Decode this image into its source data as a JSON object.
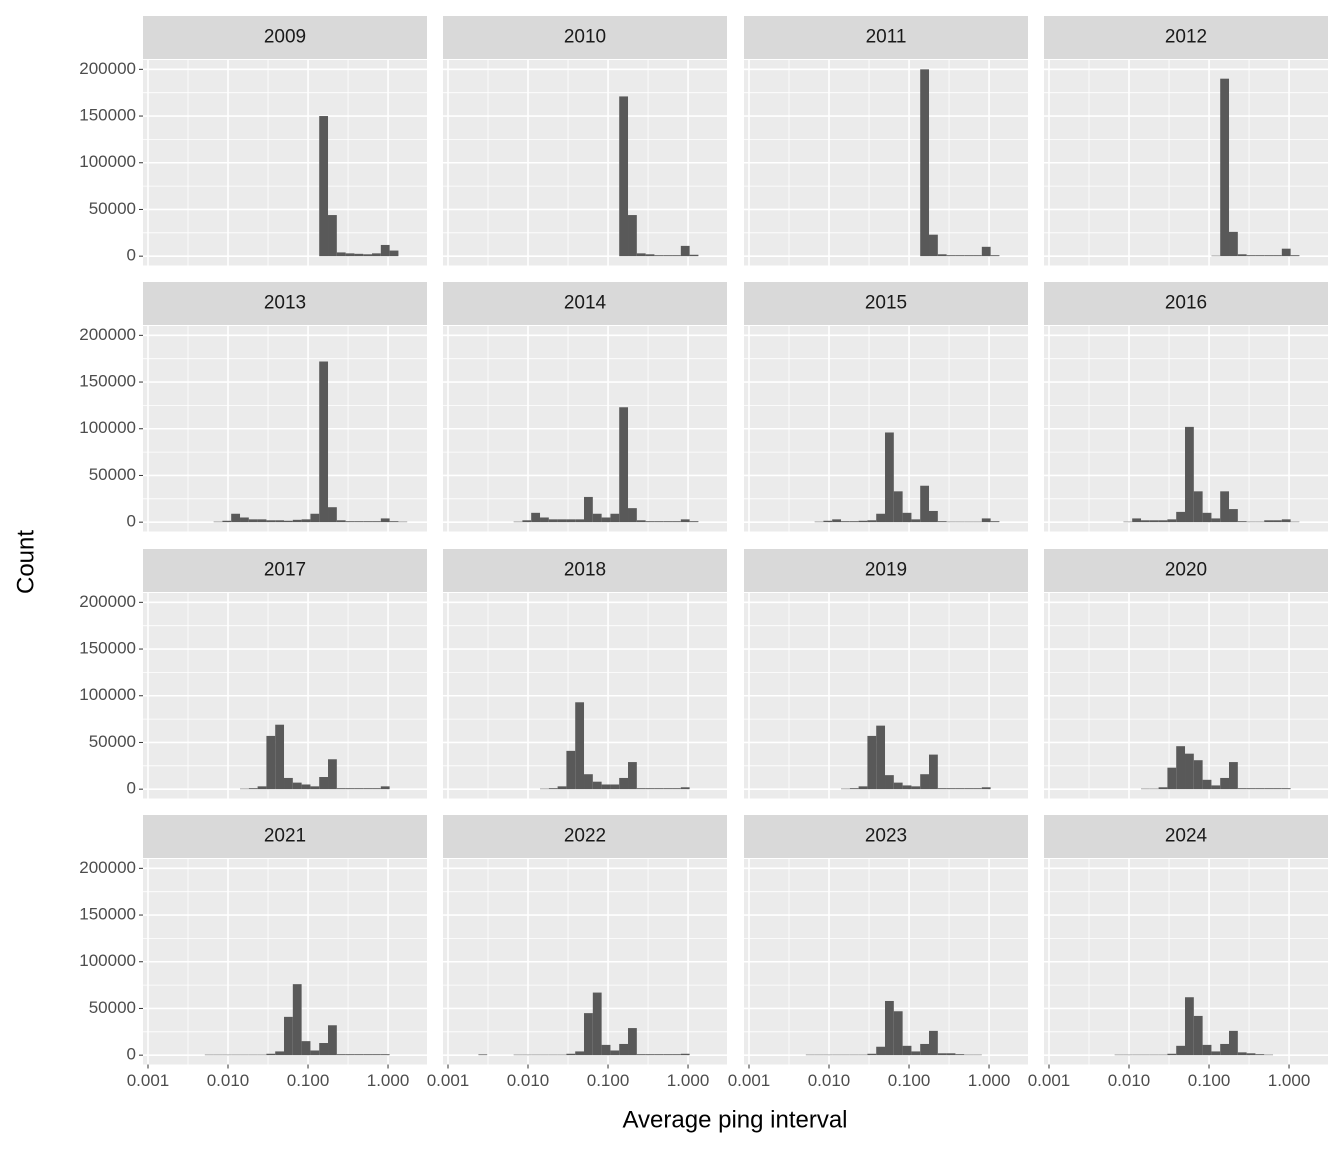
{
  "chart_data": {
    "type": "histogram",
    "x_label": "Average ping interval",
    "y_label": "Count",
    "log_x": true,
    "grid": true,
    "color": "#595959",
    "xlim": [
      0.000866,
      3.07
    ],
    "xticks": [
      0.001,
      {
        "value": 0.01,
        "label": "0.010"
      },
      {
        "value": 0.1,
        "label": "0.100"
      },
      {
        "value": 1,
        "label": "1.000"
      }
    ],
    "ylim": [
      -10000,
      210000
    ],
    "yticks": [
      0,
      50000,
      100000,
      150000,
      200000
    ],
    "bins": [
      0.001122,
      0.001445,
      0.001862,
      0.002399,
      0.00309,
      0.003981,
      0.005129,
      0.006607,
      0.008511,
      0.01096,
      0.01413,
      0.0182,
      0.02344,
      0.0302,
      0.0389,
      0.05012,
      0.06457,
      0.08318,
      0.1072,
      0.138,
      0.1778,
      0.2291,
      0.2951,
      0.3802,
      0.4898,
      0.631,
      0.8128,
      1.047,
      1.349,
      1.738,
      2.239
    ],
    "panels": [
      {
        "title": "2009",
        "counts": [
          0,
          0,
          0,
          0,
          0,
          0,
          0,
          0,
          0,
          0,
          0,
          0,
          0,
          0,
          0,
          0,
          0,
          0,
          0,
          150000,
          44000,
          4000,
          3000,
          2500,
          2000,
          3000,
          12000,
          6000,
          0,
          0
        ]
      },
      {
        "title": "2010",
        "counts": [
          0,
          0,
          0,
          0,
          0,
          0,
          0,
          0,
          0,
          0,
          0,
          0,
          0,
          0,
          0,
          0,
          0,
          0,
          0,
          171000,
          44000,
          3000,
          2000,
          1000,
          1000,
          1000,
          11000,
          1500,
          0,
          0
        ]
      },
      {
        "title": "2011",
        "counts": [
          0,
          0,
          0,
          0,
          0,
          0,
          0,
          0,
          0,
          0,
          0,
          0,
          0,
          0,
          0,
          0,
          0,
          0,
          0,
          200000,
          23000,
          2000,
          1000,
          1000,
          1000,
          1000,
          10000,
          1000,
          0,
          0
        ]
      },
      {
        "title": "2012",
        "counts": [
          0,
          0,
          0,
          0,
          0,
          0,
          0,
          0,
          0,
          0,
          0,
          0,
          0,
          0,
          0,
          0,
          0,
          0,
          500,
          190000,
          26000,
          2000,
          1000,
          1000,
          1000,
          1000,
          8000,
          1000,
          0,
          0
        ]
      },
      {
        "title": "2013",
        "counts": [
          0,
          0,
          0,
          0,
          0,
          0,
          0,
          500,
          1500,
          9000,
          5000,
          3000,
          3000,
          2000,
          2000,
          1500,
          2500,
          3000,
          9000,
          172000,
          16000,
          2000,
          1000,
          1000,
          1000,
          1000,
          4000,
          1000,
          500,
          0
        ]
      },
      {
        "title": "2014",
        "counts": [
          0,
          0,
          0,
          0,
          0,
          0,
          0,
          500,
          2000,
          10000,
          5000,
          3000,
          3000,
          3000,
          3000,
          27000,
          9000,
          5000,
          9000,
          123000,
          15000,
          2000,
          1000,
          1000,
          1000,
          1000,
          3000,
          1000,
          0,
          0
        ]
      },
      {
        "title": "2015",
        "counts": [
          0,
          0,
          0,
          0,
          0,
          0,
          0,
          500,
          1500,
          3000,
          1000,
          1000,
          1500,
          2000,
          9000,
          96000,
          33000,
          10000,
          3000,
          39000,
          12000,
          1000,
          500,
          500,
          500,
          500,
          4000,
          1000,
          0,
          0
        ]
      },
      {
        "title": "2016",
        "counts": [
          0,
          0,
          0,
          0,
          0,
          0,
          0,
          0,
          500,
          4000,
          2000,
          2000,
          2000,
          3000,
          11000,
          102000,
          33000,
          10000,
          4000,
          33000,
          14000,
          1000,
          500,
          500,
          2000,
          2000,
          3000,
          500,
          0,
          0
        ]
      },
      {
        "title": "2017",
        "counts": [
          0,
          0,
          0,
          0,
          0,
          0,
          0,
          0,
          0,
          0,
          500,
          1000,
          3000,
          57000,
          69000,
          12000,
          7000,
          5000,
          3000,
          13000,
          32000,
          1000,
          1000,
          1000,
          1000,
          1000,
          3000,
          0,
          0,
          0
        ]
      },
      {
        "title": "2018",
        "counts": [
          0,
          0,
          0,
          0,
          0,
          0,
          0,
          0,
          0,
          0,
          500,
          1000,
          3000,
          41000,
          93000,
          16000,
          8000,
          5000,
          5000,
          12000,
          29000,
          1000,
          1000,
          1000,
          1000,
          1000,
          2000,
          0,
          0,
          0
        ]
      },
      {
        "title": "2019",
        "counts": [
          0,
          0,
          0,
          0,
          0,
          0,
          0,
          0,
          0,
          0,
          500,
          1000,
          3000,
          57000,
          68000,
          15000,
          7000,
          4000,
          3000,
          16000,
          37000,
          1000,
          1000,
          1000,
          1000,
          1000,
          2000,
          0,
          0,
          0
        ]
      },
      {
        "title": "2020",
        "counts": [
          0,
          0,
          0,
          0,
          0,
          0,
          0,
          0,
          0,
          0,
          500,
          500,
          2000,
          23000,
          46000,
          38000,
          31000,
          10000,
          4000,
          12000,
          29000,
          1000,
          1000,
          1000,
          1000,
          1000,
          1000,
          0,
          0,
          0
        ]
      },
      {
        "title": "2021",
        "counts": [
          0,
          0,
          0,
          0,
          0,
          0,
          500,
          500,
          500,
          500,
          500,
          500,
          500,
          1500,
          4000,
          41000,
          76000,
          15000,
          5000,
          13000,
          32000,
          1000,
          1000,
          1000,
          1000,
          1000,
          1000,
          0,
          0,
          0
        ]
      },
      {
        "title": "2022",
        "counts": [
          0,
          0,
          0,
          800,
          0,
          0,
          0,
          500,
          500,
          500,
          500,
          500,
          500,
          1500,
          4000,
          45000,
          67000,
          11000,
          5000,
          12000,
          29000,
          1000,
          1000,
          1000,
          1000,
          1000,
          1500,
          0,
          0,
          0
        ]
      },
      {
        "title": "2023",
        "counts": [
          0,
          0,
          0,
          0,
          0,
          0,
          500,
          500,
          500,
          500,
          500,
          500,
          500,
          1500,
          9000,
          58000,
          47000,
          10000,
          4000,
          12000,
          26000,
          2000,
          2000,
          1000,
          500,
          500,
          0,
          0,
          0,
          0
        ]
      },
      {
        "title": "2024",
        "counts": [
          0,
          0,
          0,
          0,
          0,
          0,
          0,
          500,
          500,
          500,
          500,
          500,
          500,
          1500,
          10000,
          62000,
          42000,
          11000,
          4000,
          12000,
          26000,
          3000,
          2000,
          1000,
          500,
          0,
          0,
          0,
          0,
          0
        ]
      }
    ]
  }
}
